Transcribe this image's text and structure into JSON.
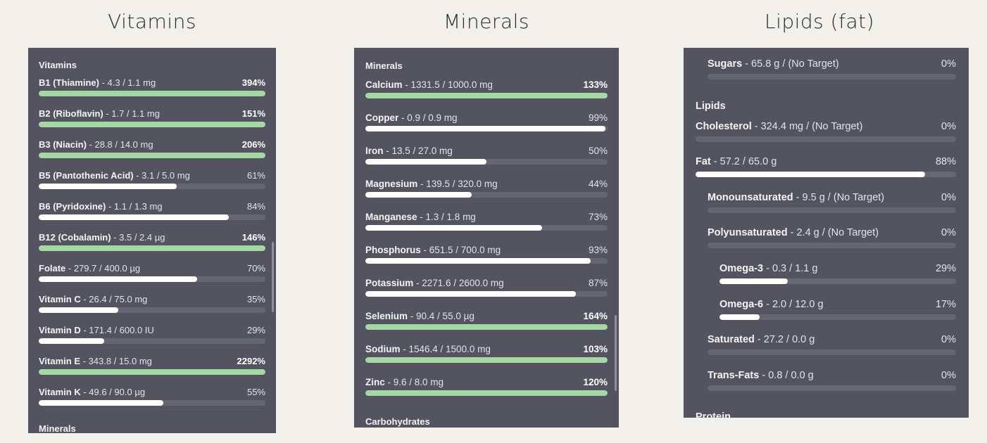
{
  "columns": {
    "vitamins_title": "Vitamins",
    "minerals_title": "Minerals",
    "lipids_title": "Lipids (fat)"
  },
  "vitamins_panel": {
    "header": "Vitamins",
    "footer_header": "Minerals",
    "rows": [
      {
        "name": "B1 (Thiamine)",
        "amount": "- 4.3 / 1.1 mg",
        "pct": "394%",
        "value": 3.94
      },
      {
        "name": "B2 (Riboflavin)",
        "amount": "- 1.7 / 1.1 mg",
        "pct": "151%",
        "value": 1.51
      },
      {
        "name": "B3 (Niacin)",
        "amount": "- 28.8 / 14.0 mg",
        "pct": "206%",
        "value": 2.06
      },
      {
        "name": "B5 (Pantothenic Acid)",
        "amount": "- 3.1 / 5.0 mg",
        "pct": "61%",
        "value": 0.61
      },
      {
        "name": "B6 (Pyridoxine)",
        "amount": "- 1.1 / 1.3 mg",
        "pct": "84%",
        "value": 0.84
      },
      {
        "name": "B12 (Cobalamin)",
        "amount": "- 3.5 / 2.4 µg",
        "pct": "146%",
        "value": 1.46
      },
      {
        "name": "Folate",
        "amount": "- 279.7 / 400.0 µg",
        "pct": "70%",
        "value": 0.7
      },
      {
        "name": "Vitamin C",
        "amount": "- 26.4 / 75.0 mg",
        "pct": "35%",
        "value": 0.35
      },
      {
        "name": "Vitamin D",
        "amount": "- 171.4 / 600.0 IU",
        "pct": "29%",
        "value": 0.29
      },
      {
        "name": "Vitamin E",
        "amount": "- 343.8 / 15.0 mg",
        "pct": "2292%",
        "value": 22.92
      },
      {
        "name": "Vitamin K",
        "amount": "- 49.6 / 90.0 µg",
        "pct": "55%",
        "value": 0.55
      }
    ]
  },
  "minerals_panel": {
    "header": "Minerals",
    "footer_header": "Carbohydrates",
    "rows": [
      {
        "name": "Calcium",
        "amount": "- 1331.5 / 1000.0 mg",
        "pct": "133%",
        "value": 1.33
      },
      {
        "name": "Copper",
        "amount": "- 0.9 / 0.9 mg",
        "pct": "99%",
        "value": 0.99
      },
      {
        "name": "Iron",
        "amount": "- 13.5 / 27.0 mg",
        "pct": "50%",
        "value": 0.5
      },
      {
        "name": "Magnesium",
        "amount": "- 139.5 / 320.0 mg",
        "pct": "44%",
        "value": 0.44
      },
      {
        "name": "Manganese",
        "amount": "- 1.3 / 1.8 mg",
        "pct": "73%",
        "value": 0.73
      },
      {
        "name": "Phosphorus",
        "amount": "- 651.5 / 700.0 mg",
        "pct": "93%",
        "value": 0.93
      },
      {
        "name": "Potassium",
        "amount": "- 2271.6 / 2600.0 mg",
        "pct": "87%",
        "value": 0.87
      },
      {
        "name": "Selenium",
        "amount": "- 90.4 / 55.0 µg",
        "pct": "164%",
        "value": 1.64
      },
      {
        "name": "Sodium",
        "amount": "- 1546.4 / 1500.0 mg",
        "pct": "103%",
        "value": 1.03
      },
      {
        "name": "Zinc",
        "amount": "- 9.6 / 8.0 mg",
        "pct": "120%",
        "value": 1.2
      }
    ]
  },
  "lipids_panel": {
    "header": "Lipids",
    "footer_header": "Protein",
    "rows": [
      {
        "name": "Sugars",
        "amount": "- 65.8 g / (No Target)",
        "pct": "0%",
        "value": 0,
        "level": 1
      },
      {
        "name": "Cholesterol",
        "amount": "- 324.4 mg / (No Target)",
        "pct": "0%",
        "value": 0,
        "level": 0
      },
      {
        "name": "Fat",
        "amount": "- 57.2 / 65.0 g",
        "pct": "88%",
        "value": 0.88,
        "level": 0
      },
      {
        "name": "Monounsaturated",
        "amount": "- 9.5 g / (No Target)",
        "pct": "0%",
        "value": 0,
        "level": 1
      },
      {
        "name": "Polyunsaturated",
        "amount": "- 2.4 g / (No Target)",
        "pct": "0%",
        "value": 0,
        "level": 1
      },
      {
        "name": "Omega-3",
        "amount": "- 0.3 / 1.1 g",
        "pct": "29%",
        "value": 0.29,
        "level": 2
      },
      {
        "name": "Omega-6",
        "amount": "- 2.0 / 12.0 g",
        "pct": "17%",
        "value": 0.17,
        "level": 2
      },
      {
        "name": "Saturated",
        "amount": "- 27.2 / 0.0 g",
        "pct": "0%",
        "value": 0,
        "level": 1
      },
      {
        "name": "Trans-Fats",
        "amount": "- 0.8 / 0.0 g",
        "pct": "0%",
        "value": 0,
        "level": 1
      }
    ]
  },
  "colors": {
    "panel_bg": "#535460",
    "track": "#656672",
    "fill_normal": "#ffffff",
    "fill_over": "#a4d9a5"
  }
}
